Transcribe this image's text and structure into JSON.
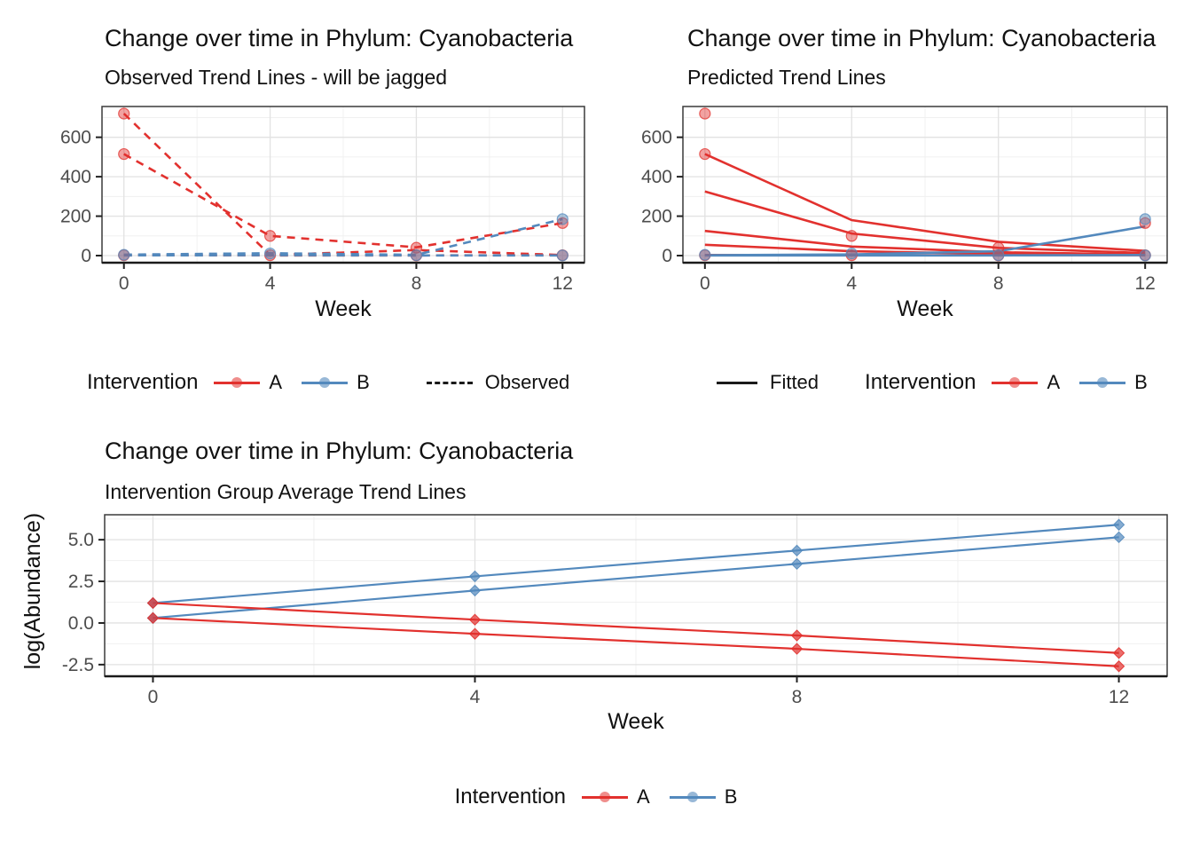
{
  "colors": {
    "red": "#E2312E",
    "blue": "#5389BD",
    "black": "#1A1A1A",
    "red_dot": "rgba(226,49,46,0.55)",
    "blue_dot": "rgba(83,137,189,0.6)",
    "grid_major": "#E2E2E2",
    "grid_minor": "#F0F0F0",
    "panel_border": "#3A3A3A",
    "tick_label": "#4D4D4D"
  },
  "top_left": {
    "title": "Change over time in Phylum: Cyanobacteria",
    "subtitle": "Observed Trend Lines - will be jagged",
    "xlabel": "Week",
    "legend": {
      "title": "Intervention",
      "a_label": "A",
      "b_label": "B",
      "linetype_label": "Observed"
    }
  },
  "top_right": {
    "title": "Change over time in Phylum: Cyanobacteria",
    "subtitle": "Predicted Trend Lines",
    "xlabel": "Week",
    "legend": {
      "title": "Intervention",
      "a_label": "A",
      "b_label": "B",
      "linetype_label": "Fitted"
    }
  },
  "bottom": {
    "title": "Change over time in Phylum: Cyanobacteria",
    "subtitle": "Intervention Group Average Trend Lines",
    "xlabel": "Week",
    "ylabel": "log(Abundance)",
    "legend": {
      "title": "Intervention",
      "a_label": "A",
      "b_label": "B"
    }
  },
  "chart_data": [
    {
      "type": "line",
      "panel": "observed",
      "title": "Change over time in Phylum: Cyanobacteria",
      "subtitle": "Observed Trend Lines - will be jagged",
      "xlabel": "Week",
      "ylabel": "",
      "x": [
        0,
        4,
        8,
        12
      ],
      "xlim": [
        -0.6,
        12.6
      ],
      "ylim": [
        -36,
        756
      ],
      "xticks": {
        "values": [
          0,
          4,
          8,
          12
        ],
        "labels": [
          "0",
          "4",
          "8",
          "12"
        ]
      },
      "yticks": {
        "values": [
          0,
          200,
          400,
          600
        ],
        "labels": [
          "0",
          "200",
          "400",
          "600"
        ]
      },
      "xminor": [
        2,
        6,
        10
      ],
      "yminor": [
        100,
        300,
        500,
        700
      ],
      "line_width": 2.6,
      "marker": {
        "shape": "circle",
        "r": 6,
        "fill_opacity": 0.45,
        "stroke_opacity": 0.75
      },
      "series": [
        {
          "name": "A-subject-1-observed",
          "group": "A",
          "color": "red",
          "dash": "9,7",
          "values": [
            720,
            3,
            28,
            3
          ],
          "markers": false
        },
        {
          "name": "A-subject-2-observed",
          "group": "A",
          "color": "red",
          "dash": "9,7",
          "values": [
            515,
            100,
            42,
            165
          ],
          "markers": false
        },
        {
          "name": "A-subject-3-observed",
          "group": "A",
          "color": "red",
          "dash": "9,7",
          "values": [
            2,
            1,
            1,
            2
          ],
          "markers": false
        },
        {
          "name": "B-subject-1-observed",
          "group": "B",
          "color": "blue",
          "dash": "9,7",
          "values": [
            5,
            12,
            4,
            185
          ],
          "markers": false
        },
        {
          "name": "B-subject-2-observed",
          "group": "B",
          "color": "blue",
          "dash": "9,7",
          "values": [
            1,
            2,
            1,
            1
          ],
          "markers": false
        }
      ],
      "points": [
        {
          "x": 0,
          "y": 720,
          "c": "red"
        },
        {
          "x": 0,
          "y": 515,
          "c": "red"
        },
        {
          "x": 0,
          "y": 2,
          "c": "red"
        },
        {
          "x": 4,
          "y": 100,
          "c": "red"
        },
        {
          "x": 4,
          "y": 2,
          "c": "red"
        },
        {
          "x": 8,
          "y": 40,
          "c": "red"
        },
        {
          "x": 8,
          "y": 1,
          "c": "red"
        },
        {
          "x": 12,
          "y": 165,
          "c": "red"
        },
        {
          "x": 12,
          "y": 2,
          "c": "red"
        },
        {
          "x": 0,
          "y": 4,
          "c": "blue"
        },
        {
          "x": 4,
          "y": 11,
          "c": "blue"
        },
        {
          "x": 8,
          "y": 2,
          "c": "blue"
        },
        {
          "x": 12,
          "y": 185,
          "c": "blue"
        },
        {
          "x": 12,
          "y": 1,
          "c": "blue"
        }
      ],
      "legend_position": "bottom"
    },
    {
      "type": "line",
      "panel": "fitted",
      "title": "Change over time in Phylum: Cyanobacteria",
      "subtitle": "Predicted Trend Lines",
      "xlabel": "Week",
      "ylabel": "",
      "x": [
        0,
        4,
        8,
        12
      ],
      "xlim": [
        -0.6,
        12.6
      ],
      "ylim": [
        -36,
        756
      ],
      "xticks": {
        "values": [
          0,
          4,
          8,
          12
        ],
        "labels": [
          "0",
          "4",
          "8",
          "12"
        ]
      },
      "yticks": {
        "values": [
          0,
          200,
          400,
          600
        ],
        "labels": [
          "0",
          "200",
          "400",
          "600"
        ]
      },
      "xminor": [
        2,
        6,
        10
      ],
      "yminor": [
        100,
        300,
        500,
        700
      ],
      "line_width": 2.6,
      "marker": {
        "shape": "circle",
        "r": 6,
        "fill_opacity": 0.45,
        "stroke_opacity": 0.75
      },
      "series": [
        {
          "name": "A-subject-1-fitted",
          "group": "A",
          "color": "red",
          "dash": null,
          "values": [
            515,
            180,
            70,
            24
          ],
          "markers": false
        },
        {
          "name": "A-subject-2-fitted",
          "group": "A",
          "color": "red",
          "dash": null,
          "values": [
            325,
            112,
            39,
            13
          ],
          "markers": false
        },
        {
          "name": "A-subject-3-fitted",
          "group": "A",
          "color": "red",
          "dash": null,
          "values": [
            125,
            46,
            17,
            6
          ],
          "markers": false
        },
        {
          "name": "A-subject-4-fitted",
          "group": "A",
          "color": "red",
          "dash": null,
          "values": [
            55,
            22,
            9,
            4
          ],
          "markers": false
        },
        {
          "name": "A-subject-5-fitted",
          "group": "A",
          "color": "red",
          "dash": null,
          "values": [
            3,
            2,
            2,
            2
          ],
          "markers": false
        },
        {
          "name": "B-subject-1-fitted",
          "group": "B",
          "color": "blue",
          "dash": null,
          "values": [
            2,
            6,
            22,
            148
          ],
          "markers": false
        },
        {
          "name": "B-subject-2-fitted",
          "group": "B",
          "color": "blue",
          "dash": null,
          "values": [
            1,
            1,
            1,
            3
          ],
          "markers": false
        }
      ],
      "points": [
        {
          "x": 0,
          "y": 720,
          "c": "red"
        },
        {
          "x": 0,
          "y": 515,
          "c": "red"
        },
        {
          "x": 0,
          "y": 2,
          "c": "red"
        },
        {
          "x": 4,
          "y": 100,
          "c": "red"
        },
        {
          "x": 4,
          "y": 2,
          "c": "red"
        },
        {
          "x": 8,
          "y": 40,
          "c": "red"
        },
        {
          "x": 8,
          "y": 1,
          "c": "red"
        },
        {
          "x": 12,
          "y": 165,
          "c": "red"
        },
        {
          "x": 12,
          "y": 2,
          "c": "red"
        },
        {
          "x": 0,
          "y": 4,
          "c": "blue"
        },
        {
          "x": 4,
          "y": 11,
          "c": "blue"
        },
        {
          "x": 8,
          "y": 2,
          "c": "blue"
        },
        {
          "x": 12,
          "y": 185,
          "c": "blue"
        },
        {
          "x": 12,
          "y": 1,
          "c": "blue"
        }
      ],
      "legend_position": "bottom"
    },
    {
      "type": "line",
      "panel": "group-average",
      "title": "Change over time in Phylum: Cyanobacteria",
      "subtitle": "Intervention Group Average Trend Lines",
      "xlabel": "Week",
      "ylabel": "log(Abundance)",
      "x": [
        0,
        4,
        8,
        12
      ],
      "xlim": [
        -0.6,
        12.6
      ],
      "ylim": [
        -3.2,
        6.5
      ],
      "xticks": {
        "values": [
          0,
          4,
          8,
          12
        ],
        "labels": [
          "0",
          "4",
          "8",
          "12"
        ]
      },
      "yticks": {
        "values": [
          -2.5,
          0,
          2.5,
          5
        ],
        "labels": [
          "-2.5",
          "0.0",
          "2.5",
          "5.0"
        ]
      },
      "xminor": [
        2,
        6,
        10
      ],
      "yminor": [
        -1.25,
        1.25,
        3.75,
        6.25
      ],
      "line_width": 2.2,
      "marker": {
        "shape": "diamond",
        "r": 6,
        "fill_opacity": 0.7,
        "stroke_opacity": 0.9
      },
      "series": [
        {
          "name": "B-average-1",
          "group": "B",
          "color": "blue",
          "dash": null,
          "values": [
            1.2,
            2.8,
            4.35,
            5.9
          ],
          "markers": true
        },
        {
          "name": "B-average-2",
          "group": "B",
          "color": "blue",
          "dash": null,
          "values": [
            0.3,
            1.95,
            3.55,
            5.15
          ],
          "markers": true
        },
        {
          "name": "A-average-1",
          "group": "A",
          "color": "red",
          "dash": null,
          "values": [
            1.2,
            0.2,
            -0.75,
            -1.8
          ],
          "markers": true
        },
        {
          "name": "A-average-2",
          "group": "A",
          "color": "red",
          "dash": null,
          "values": [
            0.3,
            -0.65,
            -1.55,
            -2.6
          ],
          "markers": true
        }
      ],
      "points": [],
      "legend_position": "bottom"
    }
  ]
}
